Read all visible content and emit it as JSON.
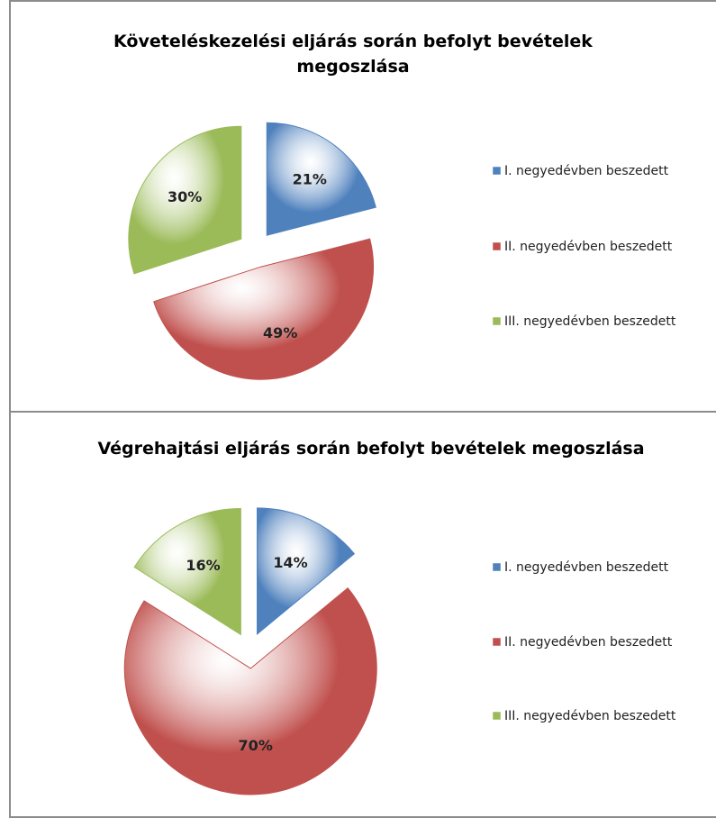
{
  "chart_data": [
    {
      "type": "pie",
      "title": "Követeléskezelési eljárás során befolyt bevételek megoszlása",
      "categories": [
        "I. negyedévben beszedett",
        "II. negyedévben beszedett",
        "III. negyedévben beszedett"
      ],
      "values": [
        21,
        49,
        30
      ],
      "value_labels": [
        "21%",
        "49%",
        "30%"
      ],
      "colors": [
        "#4f81bd",
        "#c0504d",
        "#9bbb59"
      ],
      "legend": "right"
    },
    {
      "type": "pie",
      "title": "Végrehajtási eljárás során befolyt bevételek megoszlása",
      "categories": [
        "I. negyedévben beszedett",
        "II. negyedévben beszedett",
        "III. negyedévben beszedett"
      ],
      "values": [
        14,
        70,
        16
      ],
      "value_labels": [
        "14%",
        "70%",
        "16%"
      ],
      "colors": [
        "#4f81bd",
        "#c0504d",
        "#9bbb59"
      ],
      "legend": "right"
    }
  ]
}
